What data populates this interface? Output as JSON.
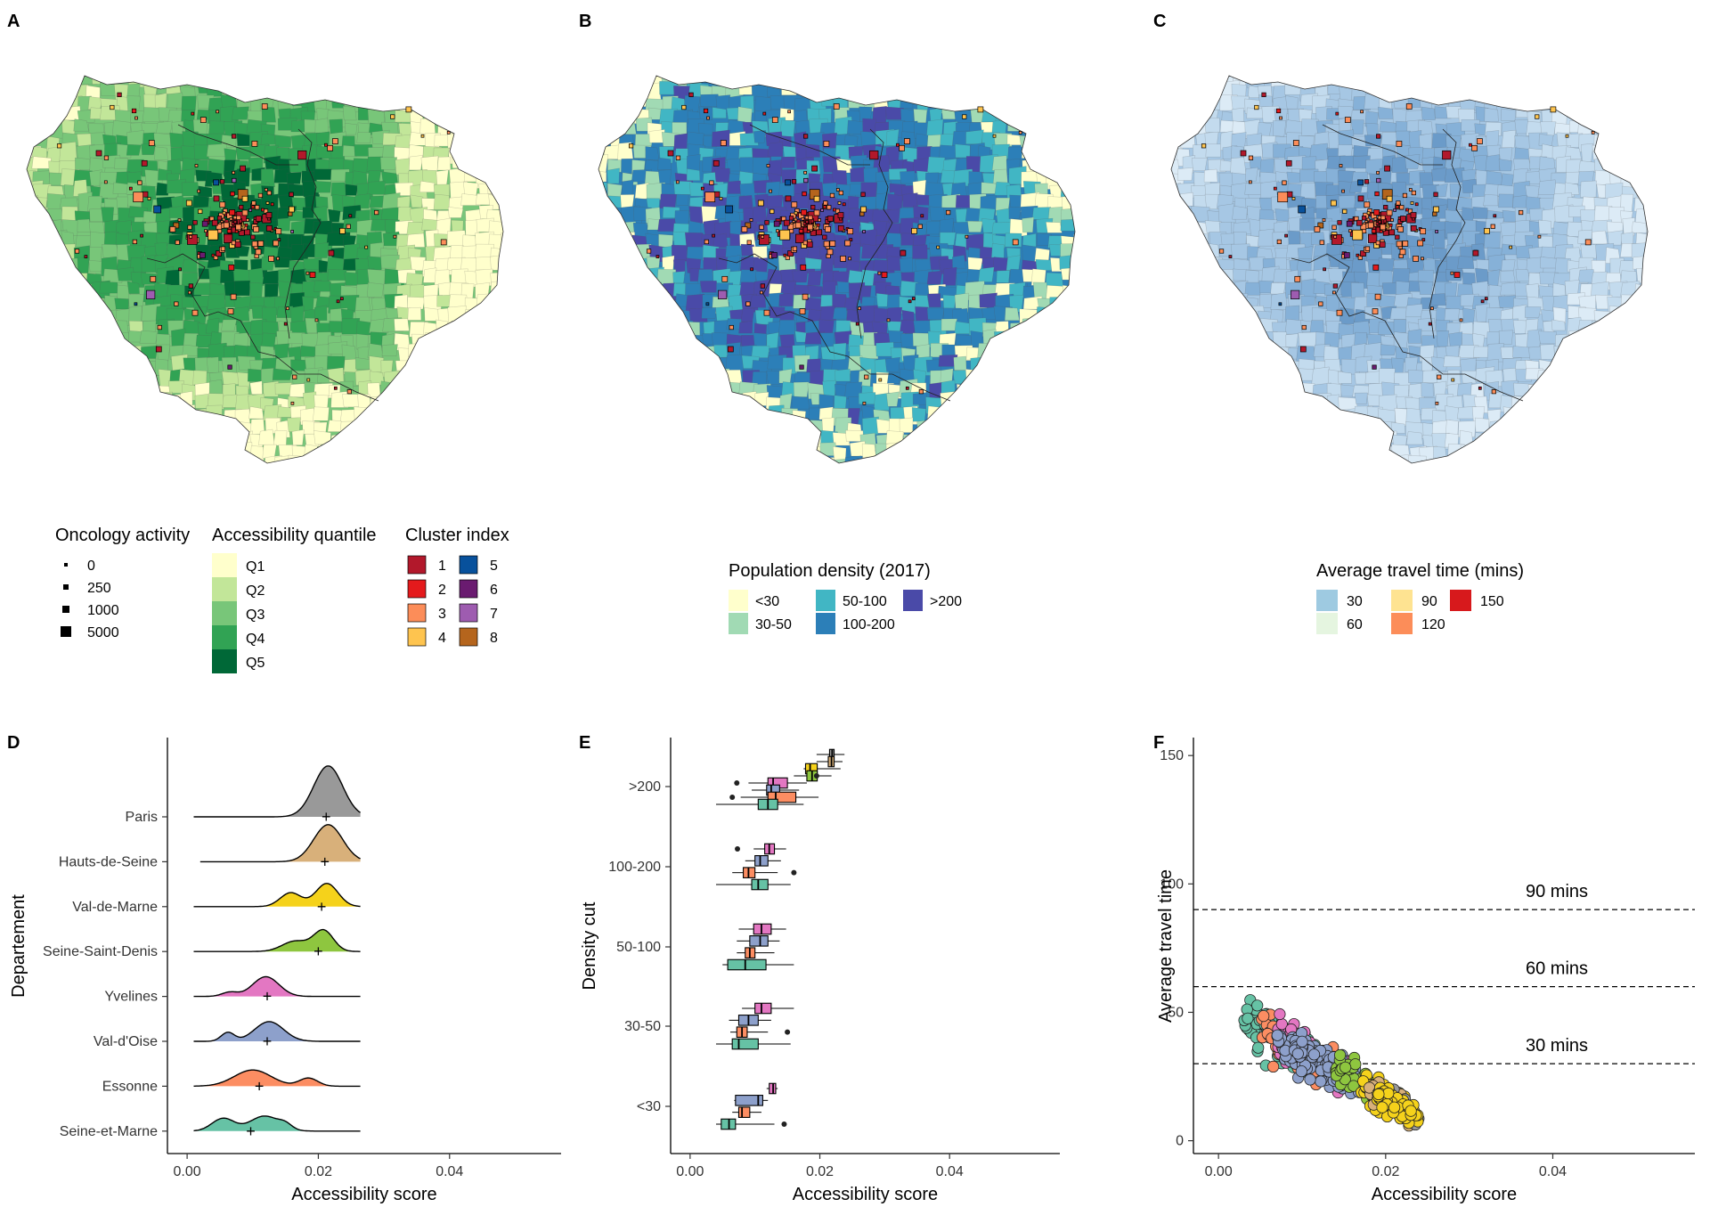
{
  "panels": {
    "A": {
      "label": "A"
    },
    "B": {
      "label": "B"
    },
    "C": {
      "label": "C"
    },
    "D": {
      "label": "D"
    },
    "E": {
      "label": "E"
    },
    "F": {
      "label": "F"
    }
  },
  "colors": {
    "quantile": [
      "#ffffcc",
      "#c2e699",
      "#78c679",
      "#31a354",
      "#006837"
    ],
    "density": [
      "#ffffcc",
      "#a1dab4",
      "#41b6c4",
      "#2c7fb8",
      "#4a4aa8"
    ],
    "travel": [
      "#9ecae1",
      "#e5f5e0",
      "#fee391",
      "#fc8d59",
      "#d7191c"
    ],
    "cluster": [
      "#b2182b",
      "#e41a1c",
      "#fc8d59",
      "#fec44f",
      "#08519c",
      "#6a1b70",
      "#9e5cb0",
      "#b5651d"
    ],
    "dept": [
      "#999999",
      "#d8b07a",
      "#f5d21b",
      "#8ec63f",
      "#e377c2",
      "#8da0cb",
      "#fc8d62",
      "#66c2a5"
    ]
  },
  "legend_A": {
    "activity_title": "Oncology activity",
    "activity_items": [
      "0",
      "250",
      "1000",
      "5000"
    ],
    "quantile_title": "Accessibility quantile",
    "quantile_items": [
      "Q1",
      "Q2",
      "Q3",
      "Q4",
      "Q5"
    ],
    "cluster_title": "Cluster index",
    "cluster_items": [
      "1",
      "2",
      "3",
      "4",
      "5",
      "6",
      "7",
      "8"
    ]
  },
  "legend_B": {
    "title": "Population density (2017)",
    "items": [
      "<30",
      "30-50",
      "50-100",
      "100-200",
      ">200"
    ]
  },
  "legend_C": {
    "title": "Average travel time (mins)",
    "items": [
      "30",
      "60",
      "90",
      "120",
      "150"
    ]
  },
  "chart_data": [
    {
      "panel": "D",
      "type": "ridgeline",
      "xlabel": "Accessibility score",
      "ylabel": "Departement",
      "xlim": [
        -0.003,
        0.057
      ],
      "xticks": [
        "0.00",
        "0.02",
        "0.04"
      ],
      "categories": [
        "Paris",
        "Hauts-de-Seine",
        "Val-de-Marne",
        "Seine-Saint-Denis",
        "Yvelines",
        "Val-d'Oise",
        "Essonne",
        "Seine-et-Marne"
      ],
      "ranges": [
        [
          0.001,
          0.0265
        ],
        [
          0.002,
          0.0265
        ],
        [
          0.001,
          0.0265
        ],
        [
          0.001,
          0.0265
        ],
        [
          0.001,
          0.0265
        ],
        [
          0.001,
          0.0265
        ],
        [
          0.001,
          0.0265
        ],
        [
          0.001,
          0.0265
        ]
      ],
      "peaks": [
        [
          [
            0.0215,
            0.0022,
            2.2
          ]
        ],
        [
          [
            0.0215,
            0.0022,
            1.6
          ]
        ],
        [
          [
            0.0158,
            0.0016,
            0.6
          ],
          [
            0.0213,
            0.0017,
            1.0
          ]
        ],
        [
          [
            0.0165,
            0.002,
            0.45
          ],
          [
            0.0208,
            0.0015,
            0.9
          ]
        ],
        [
          [
            0.0065,
            0.0012,
            0.18
          ],
          [
            0.012,
            0.002,
            0.85
          ]
        ],
        [
          [
            0.0062,
            0.001,
            0.38
          ],
          [
            0.0125,
            0.0022,
            0.85
          ]
        ],
        [
          [
            0.01,
            0.0028,
            0.7
          ],
          [
            0.0185,
            0.0014,
            0.35
          ]
        ],
        [
          [
            0.0055,
            0.0017,
            0.55
          ],
          [
            0.0118,
            0.0022,
            0.65
          ],
          [
            0.015,
            0.001,
            0.2
          ]
        ]
      ],
      "means": [
        0.0212,
        0.021,
        0.0205,
        0.02,
        0.0122,
        0.0122,
        0.011,
        0.0097
      ]
    },
    {
      "panel": "E",
      "type": "boxplot",
      "xlabel": "Accessibility score",
      "ylabel": "Density cut",
      "xlim": [
        -0.003,
        0.057
      ],
      "xticks": [
        "0.00",
        "0.02",
        "0.04"
      ],
      "categories": [
        ">200",
        "100-200",
        "50-100",
        "30-50",
        "<30"
      ],
      "series_order": [
        "Paris",
        "Hauts-de-Seine",
        "Val-de-Marne",
        "Seine-Saint-Denis",
        "Yvelines",
        "Val-d'Oise",
        "Essonne",
        "Seine-et-Marne"
      ],
      "boxes": [
        [
          [
            0.0195,
            0.0215,
            0.0219,
            0.0222,
            0.0238,
            0.0
          ],
          [
            0.0195,
            0.0213,
            0.0218,
            0.0222,
            0.0235,
            0.0
          ],
          [
            0.0175,
            0.0178,
            0.0185,
            0.0196,
            0.0232,
            0.0
          ],
          [
            0.016,
            0.018,
            0.0188,
            0.0196,
            0.0218,
            0.0195
          ],
          [
            0.009,
            0.012,
            0.0128,
            0.015,
            0.018,
            0.0072
          ],
          [
            0.0095,
            0.0118,
            0.0125,
            0.0138,
            0.0168,
            0.0
          ],
          [
            0.0078,
            0.012,
            0.0132,
            0.0163,
            0.0198,
            0.0065
          ],
          [
            0.004,
            0.0105,
            0.012,
            0.0135,
            0.0175,
            0.0
          ]
        ],
        [
          null,
          null,
          null,
          null,
          [
            0.0098,
            0.0115,
            0.0122,
            0.013,
            0.0148,
            0.0073
          ],
          [
            0.0085,
            0.01,
            0.0108,
            0.012,
            0.014,
            0.0
          ],
          [
            0.0065,
            0.0082,
            0.009,
            0.01,
            0.0135,
            0.016
          ],
          [
            0.004,
            0.0095,
            0.0105,
            0.012,
            0.0155,
            0.0
          ]
        ],
        [
          null,
          null,
          null,
          null,
          [
            0.0075,
            0.0098,
            0.011,
            0.0125,
            0.0148,
            0.0
          ],
          [
            0.0072,
            0.0092,
            0.0108,
            0.012,
            0.0138,
            0.0
          ],
          [
            0.0072,
            0.0085,
            0.0092,
            0.01,
            0.013,
            0.0
          ],
          [
            0.005,
            0.0058,
            0.0085,
            0.0117,
            0.016,
            0.0
          ]
        ],
        [
          null,
          null,
          null,
          null,
          [
            0.008,
            0.01,
            0.011,
            0.0125,
            0.016,
            0.0
          ],
          [
            0.006,
            0.0075,
            0.009,
            0.0105,
            0.0125,
            0.0
          ],
          [
            0.0062,
            0.0072,
            0.008,
            0.0088,
            0.012,
            0.015
          ],
          [
            0.004,
            0.0065,
            0.0075,
            0.0105,
            0.0155,
            0.0
          ]
        ],
        [
          null,
          null,
          null,
          null,
          [
            0.0118,
            0.0122,
            0.0128,
            0.0132,
            0.0135,
            0.0
          ],
          [
            0.0068,
            0.007,
            0.0105,
            0.0112,
            0.012,
            0.0
          ],
          [
            0.0065,
            0.0075,
            0.008,
            0.0092,
            0.011,
            0.0
          ],
          [
            0.004,
            0.0048,
            0.006,
            0.007,
            0.013,
            0.0145
          ]
        ]
      ]
    },
    {
      "panel": "F",
      "type": "scatter",
      "xlabel": "Accessibility score",
      "ylabel": "Average travel time",
      "xlim": [
        -0.003,
        0.057
      ],
      "ylim": [
        -5,
        157
      ],
      "xticks": [
        "0.00",
        "0.02",
        "0.04"
      ],
      "yticks": [
        "0",
        "50",
        "100",
        "150"
      ],
      "reference_lines": [
        {
          "y": 30,
          "label": "30 mins"
        },
        {
          "y": 60,
          "label": "60 mins"
        },
        {
          "y": 90,
          "label": "90 mins"
        }
      ],
      "trend": {
        "x_start": 0.004,
        "y_start": 45,
        "x_end": 0.024,
        "y_end": 9,
        "spread": 8
      }
    }
  ]
}
